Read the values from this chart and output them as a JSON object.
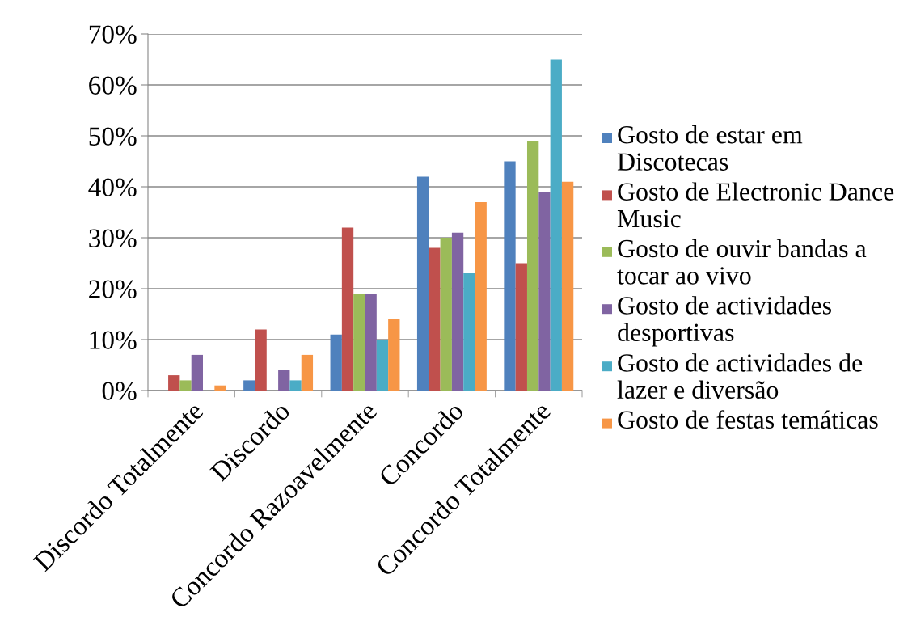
{
  "chart_data": {
    "type": "bar",
    "categories": [
      "Discordo Totalmente",
      "Discordo",
      "Concordo Razoavelmente",
      "Concordo",
      "Concordo Totalmente"
    ],
    "series": [
      {
        "name": "Gosto de estar em Discotecas",
        "color": "#4f81bd",
        "values": [
          0,
          2,
          11,
          42,
          45
        ]
      },
      {
        "name": "Gosto de Electronic Dance Music",
        "color": "#c0504d",
        "values": [
          3,
          12,
          32,
          28,
          25
        ]
      },
      {
        "name": "Gosto de ouvir bandas a tocar ao vivo",
        "color": "#9bbb59",
        "values": [
          2,
          0,
          19,
          30,
          49
        ]
      },
      {
        "name": "Gosto de actividades desportivas",
        "color": "#8064a2",
        "values": [
          7,
          4,
          19,
          31,
          39
        ]
      },
      {
        "name": "Gosto de actividades de lazer e diversão",
        "color": "#4bacc6",
        "values": [
          0,
          2,
          10,
          23,
          65
        ]
      },
      {
        "name": "Gosto de festas temáticas",
        "color": "#f79646",
        "values": [
          1,
          7,
          14,
          37,
          41
        ]
      }
    ],
    "ylim": [
      0,
      70
    ],
    "yticks": [
      {
        "value": 0,
        "label": "0%"
      },
      {
        "value": 10,
        "label": "10%"
      },
      {
        "value": 20,
        "label": "20%"
      },
      {
        "value": 30,
        "label": "30%"
      },
      {
        "value": 40,
        "label": "40%"
      },
      {
        "value": 50,
        "label": "50%"
      },
      {
        "value": 60,
        "label": "60%"
      },
      {
        "value": 70,
        "label": "70%"
      }
    ],
    "grid": "y",
    "legend": "right"
  }
}
